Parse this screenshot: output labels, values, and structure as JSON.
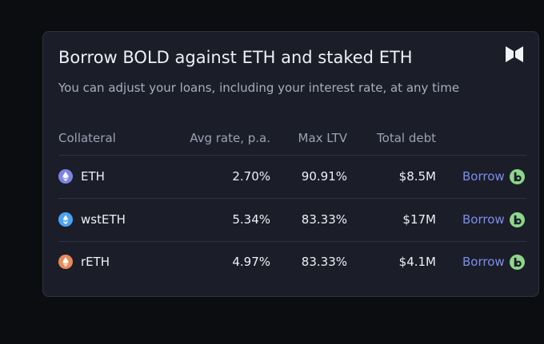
{
  "card": {
    "title": "Borrow BOLD against ETH and staked ETH",
    "subtitle": "You can adjust your loans, including your interest rate, at any time",
    "logo_icon": "liquity-logo-icon"
  },
  "table": {
    "columns": [
      "Collateral",
      "Avg rate, p.a.",
      "Max LTV",
      "Total debt"
    ],
    "rows": [
      {
        "token": "ETH",
        "icon": "eth-icon",
        "avg_rate": "2.70%",
        "max_ltv": "90.91%",
        "total_debt": "$8.5M",
        "action": "Borrow"
      },
      {
        "token": "wstETH",
        "icon": "wsteth-icon",
        "avg_rate": "5.34%",
        "max_ltv": "83.33%",
        "total_debt": "$17M",
        "action": "Borrow"
      },
      {
        "token": "rETH",
        "icon": "reth-icon",
        "avg_rate": "4.97%",
        "max_ltv": "83.33%",
        "total_debt": "$4.1M",
        "action": "Borrow"
      }
    ]
  },
  "colors": {
    "page_background": "#0c0d10",
    "card_background": "#1b1e29",
    "link_accent": "#7c8dee",
    "bold_token_green": "#8fd68a",
    "eth_purple": "#7b84e3",
    "wsteth_blue": "#4aa3f0",
    "reth_orange": "#e78a5c"
  }
}
